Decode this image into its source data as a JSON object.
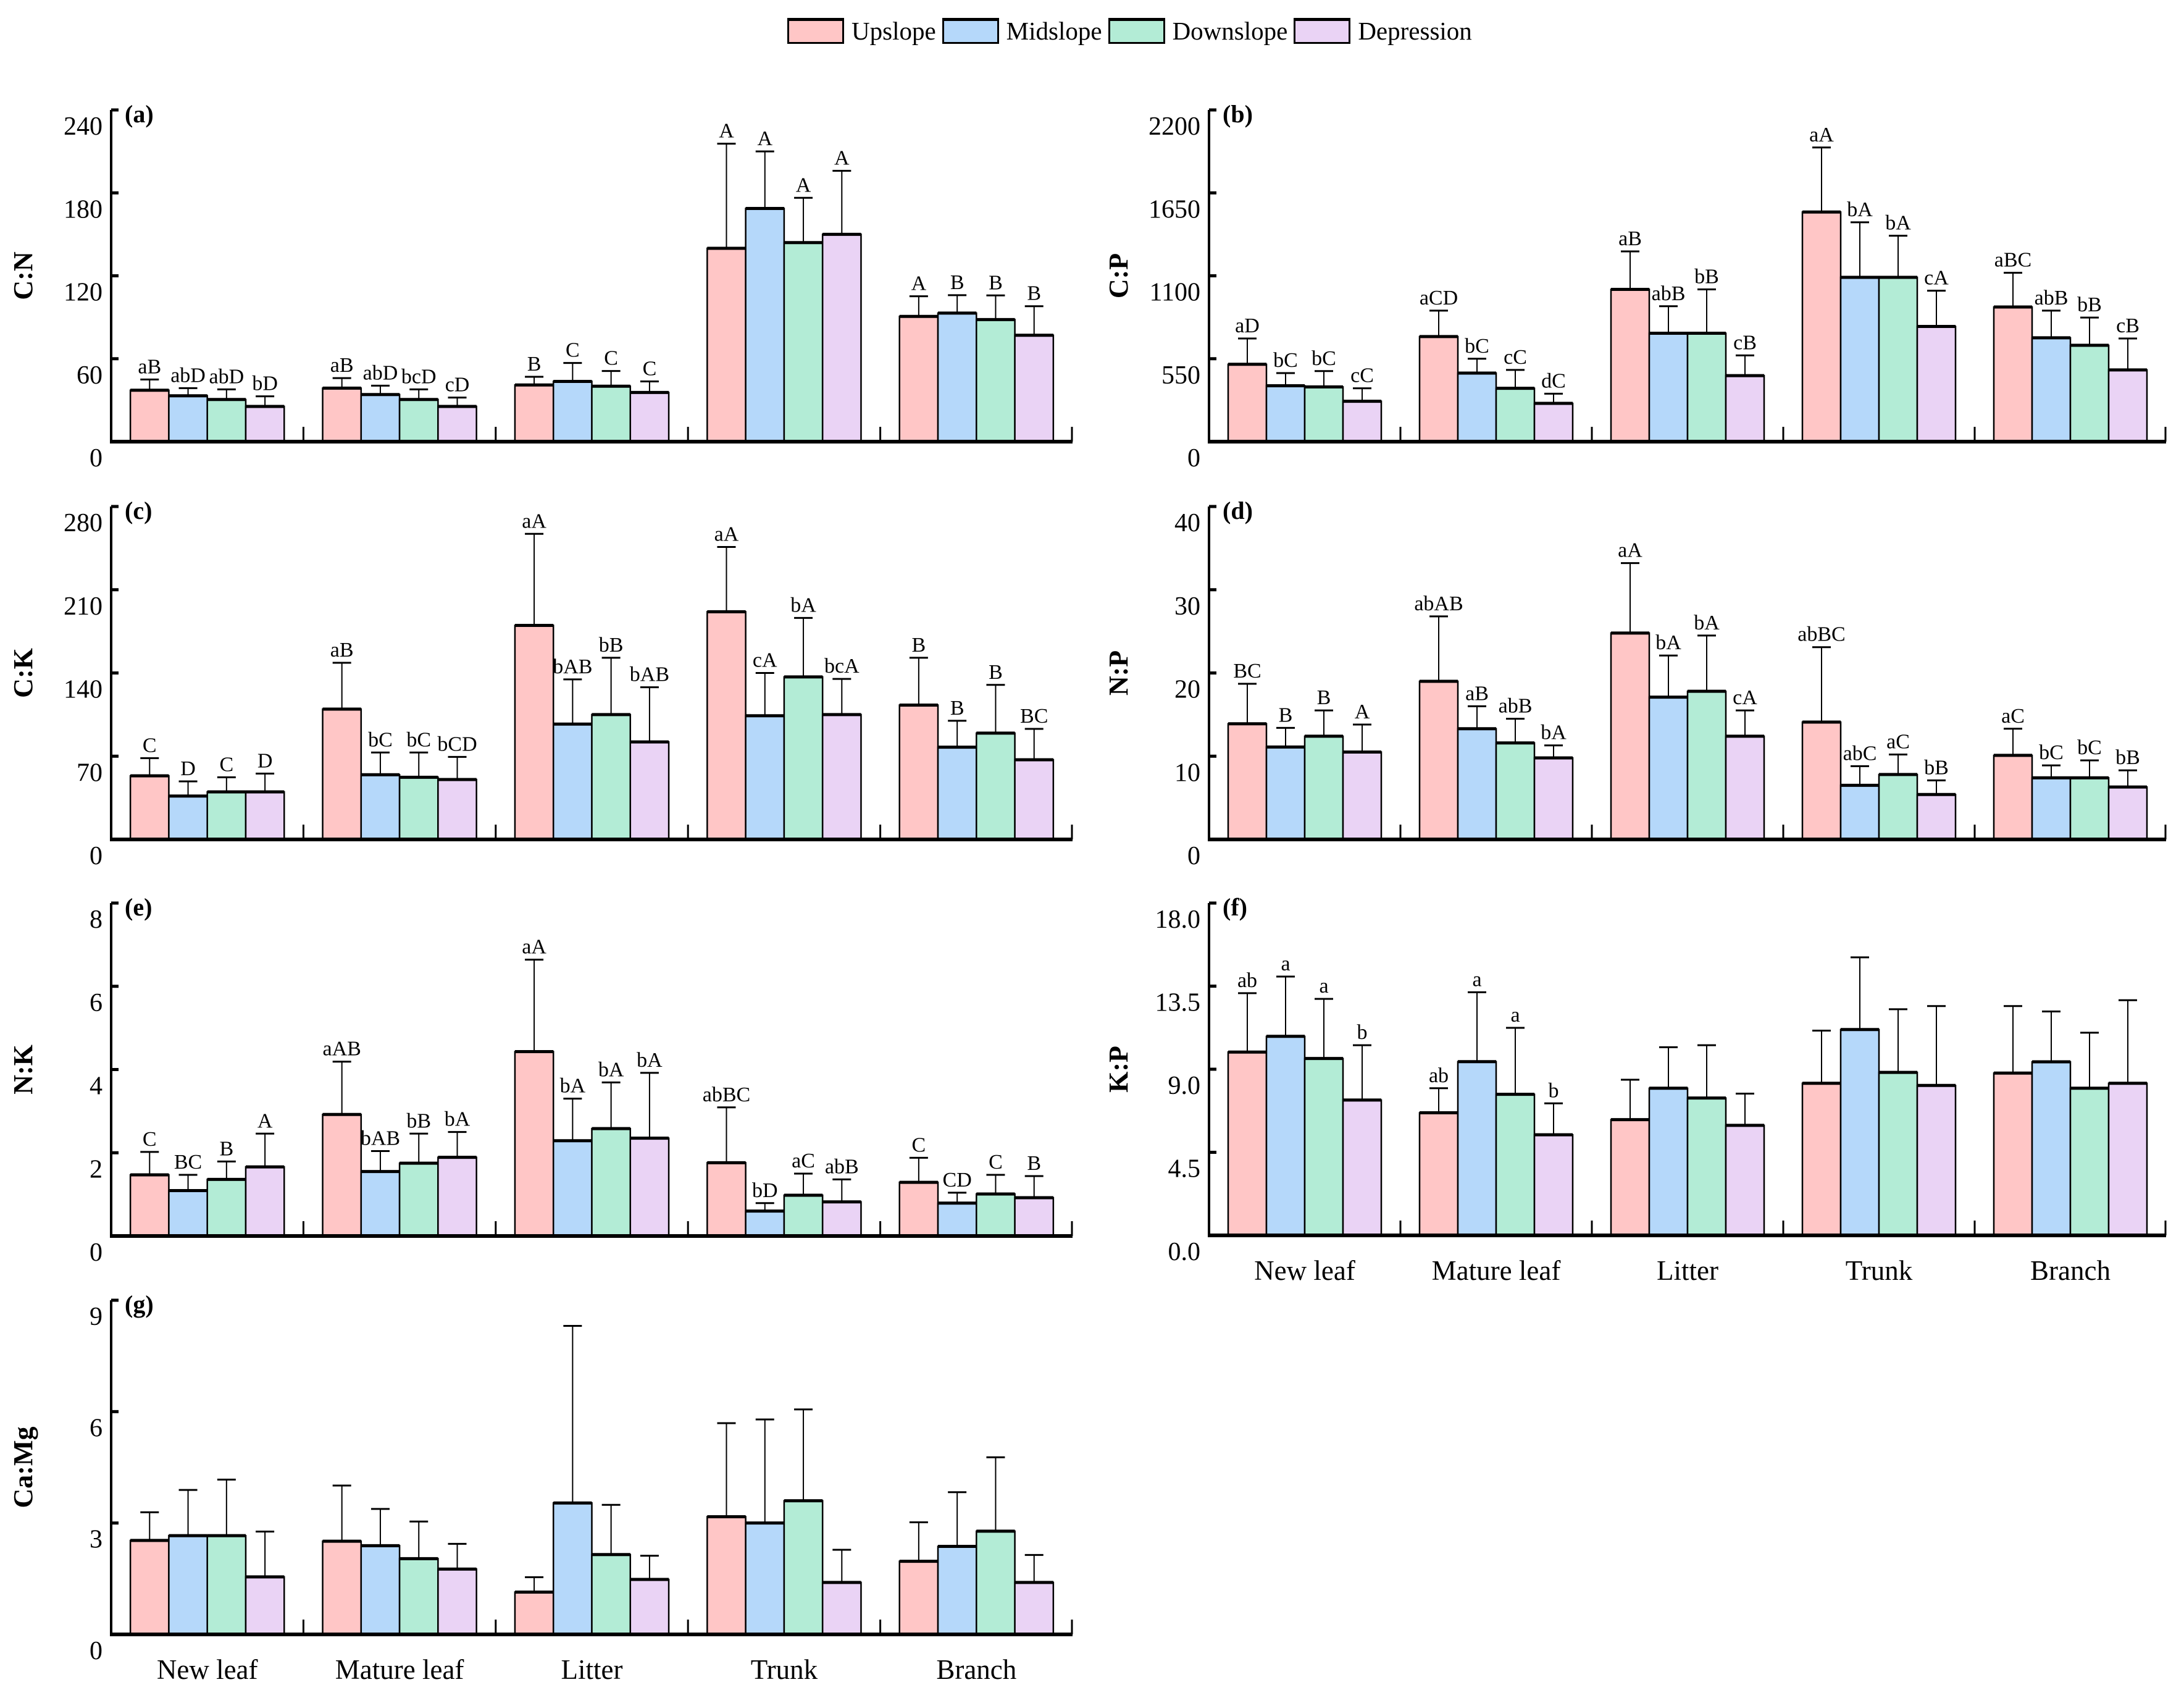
{
  "legend": [
    {
      "name": "Upslope",
      "color": "#FFC6C6"
    },
    {
      "name": "Midslope",
      "color": "#B5D8FA"
    },
    {
      "name": "Downslope",
      "color": "#B3ECD6"
    },
    {
      "name": "Depression",
      "color": "#EAD3F5"
    }
  ],
  "chart_data": [
    {
      "type": "bar",
      "panel": "(a)",
      "ylabel": "C:N",
      "categories": [
        "New leaf",
        "Mature leaf",
        "Litter",
        "Trunk",
        "Branch"
      ],
      "ylim": [
        0,
        240
      ],
      "ticks": [
        "0",
        "60",
        "120",
        "180",
        "240"
      ],
      "show_xlabels": false,
      "series": [
        {
          "name": "Upslope",
          "values": [
            37.2,
            38.7,
            41.0,
            139.9,
            90.6
          ],
          "error": [
            7.8,
            7.3,
            5.9,
            75.7,
            14.6
          ],
          "letters": [
            "aB",
            "aB",
            "B",
            "A",
            "A"
          ]
        },
        {
          "name": "Midslope",
          "values": [
            33.2,
            34.1,
            43.6,
            168.7,
            93.0
          ],
          "error": [
            5.5,
            6.4,
            13.3,
            41.3,
            13.0
          ],
          "letters": [
            "abD",
            "abD",
            "C",
            "A",
            "B"
          ]
        },
        {
          "name": "Downslope",
          "values": [
            30.5,
            30.5,
            40.1,
            144.0,
            88.3
          ],
          "error": [
            7.3,
            7.3,
            11.0,
            32.4,
            17.5
          ],
          "letters": [
            "abD",
            "bcD",
            "C",
            "A",
            "B"
          ]
        },
        {
          "name": "Depression",
          "values": [
            25.5,
            25.5,
            35.6,
            150.0,
            77.0
          ],
          "error": [
            7.3,
            6.4,
            8.0,
            46.0,
            21.0
          ],
          "letters": [
            "bD",
            "cD",
            "C",
            "A",
            "B"
          ]
        }
      ]
    },
    {
      "type": "bar",
      "panel": "(b)",
      "ylabel": "C:P",
      "categories": [
        "New leaf",
        "Mature leaf",
        "Litter",
        "Trunk",
        "Branch"
      ],
      "ylim": [
        0,
        2200
      ],
      "ticks": [
        "0",
        "550",
        "1100",
        "1650",
        "2200"
      ],
      "show_xlabels": false,
      "series": [
        {
          "name": "Upslope",
          "values": [
            513,
            697,
            1010,
            1523,
            893
          ],
          "error": [
            171,
            172,
            252,
            428,
            227
          ],
          "letters": [
            "aD",
            "aCD",
            "aB",
            "aA",
            "aBC"
          ]
        },
        {
          "name": "Midslope",
          "values": [
            371,
            455,
            719,
            1090,
            689
          ],
          "error": [
            84,
            95,
            179,
            365,
            180
          ],
          "letters": [
            "bC",
            "bC",
            "abB",
            "bA",
            "abB"
          ]
        },
        {
          "name": "Downslope",
          "values": [
            363,
            354,
            719,
            1090,
            639
          ],
          "error": [
            105,
            122,
            291,
            276,
            184
          ],
          "letters": [
            "bC",
            "cC",
            "bB",
            "bA",
            "bB"
          ]
        },
        {
          "name": "Depression",
          "values": [
            268,
            254,
            438,
            764,
            476
          ],
          "error": [
            86,
            64,
            134,
            237,
            208
          ],
          "letters": [
            "cC",
            "dC",
            "cB",
            "cA",
            "cB"
          ]
        }
      ]
    },
    {
      "type": "bar",
      "panel": "(c)",
      "ylabel": "C:K",
      "categories": [
        "New leaf",
        "Mature leaf",
        "Litter",
        "Trunk",
        "Branch"
      ],
      "ylim": [
        0,
        280
      ],
      "ticks": [
        "0",
        "70",
        "140",
        "210",
        "280"
      ],
      "show_xlabels": false,
      "series": [
        {
          "name": "Upslope",
          "values": [
            53.5,
            109.6,
            180.0,
            191.5,
            113.0
          ],
          "error": [
            14.9,
            39.0,
            77.0,
            54.5,
            39.8
          ],
          "letters": [
            "C",
            "aB",
            "aA",
            "aA",
            "B"
          ]
        },
        {
          "name": "Midslope",
          "values": [
            36.5,
            54.4,
            97.0,
            104.0,
            77.6
          ],
          "error": [
            12.3,
            18.7,
            37.6,
            36.0,
            22.2
          ],
          "letters": [
            "D",
            "bC",
            "bAB",
            "cA",
            "B"
          ]
        },
        {
          "name": "Downslope",
          "values": [
            40.0,
            52.3,
            105.0,
            136.7,
            89.4
          ],
          "error": [
            12.3,
            20.8,
            47.8,
            49.6,
            40.6
          ],
          "letters": [
            "C",
            "bC",
            "bB",
            "bA",
            "B"
          ]
        },
        {
          "name": "Depression",
          "values": [
            40.0,
            50.4,
            82.0,
            105.0,
            67.0
          ],
          "error": [
            15.4,
            19.0,
            46.0,
            30.0,
            26.0
          ],
          "letters": [
            "D",
            "bCD",
            "bAB",
            "bcA",
            "BC"
          ]
        }
      ]
    },
    {
      "type": "bar",
      "panel": "(d)",
      "ylabel": "N:P",
      "categories": [
        "New leaf",
        "Mature leaf",
        "Litter",
        "Trunk",
        "Branch"
      ],
      "ylim": [
        0,
        40
      ],
      "ticks": [
        "0",
        "10",
        "20",
        "30",
        "40"
      ],
      "show_xlabels": false,
      "series": [
        {
          "name": "Upslope",
          "values": [
            13.9,
            19.0,
            24.8,
            14.1,
            10.1
          ],
          "error": [
            4.8,
            7.8,
            8.4,
            9.0,
            3.2
          ],
          "letters": [
            "BC",
            "abAB",
            "aA",
            "abBC",
            "aC"
          ]
        },
        {
          "name": "Midslope",
          "values": [
            11.1,
            13.3,
            17.1,
            6.5,
            7.4
          ],
          "error": [
            2.3,
            2.7,
            5.0,
            2.3,
            1.5
          ],
          "letters": [
            "B",
            "aB",
            "bA",
            "abC",
            "bC"
          ]
        },
        {
          "name": "Downslope",
          "values": [
            12.4,
            11.6,
            17.8,
            7.8,
            7.4
          ],
          "error": [
            3.1,
            2.9,
            6.7,
            2.4,
            2.1
          ],
          "letters": [
            "B",
            "abB",
            "bA",
            "aC",
            "bC"
          ]
        },
        {
          "name": "Depression",
          "values": [
            10.5,
            9.8,
            12.4,
            5.4,
            6.3
          ],
          "error": [
            3.3,
            1.5,
            3.1,
            1.7,
            2.0
          ],
          "letters": [
            "A",
            "bA",
            "cA",
            "bB",
            "bB"
          ]
        }
      ]
    },
    {
      "type": "bar",
      "panel": "(e)",
      "ylabel": "N:K",
      "categories": [
        "New leaf",
        "Mature leaf",
        "Litter",
        "Trunk",
        "Branch"
      ],
      "ylim": [
        0,
        8
      ],
      "ticks": [
        "0",
        "2",
        "4",
        "6",
        "8"
      ],
      "show_xlabels": false,
      "series": [
        {
          "name": "Upslope",
          "values": [
            1.47,
            2.92,
            4.43,
            1.76,
            1.29
          ],
          "error": [
            0.55,
            1.27,
            2.21,
            1.33,
            0.59
          ],
          "letters": [
            "C",
            "aAB",
            "aA",
            "abBC",
            "C"
          ]
        },
        {
          "name": "Midslope",
          "values": [
            1.09,
            1.55,
            2.29,
            0.6,
            0.79
          ],
          "error": [
            0.38,
            0.49,
            1.01,
            0.19,
            0.25
          ],
          "letters": [
            "BC",
            "bAB",
            "bA",
            "bD",
            "CD"
          ]
        },
        {
          "name": "Downslope",
          "values": [
            1.36,
            1.75,
            2.58,
            0.98,
            1.01
          ],
          "error": [
            0.43,
            0.71,
            1.11,
            0.52,
            0.46
          ],
          "letters": [
            "B",
            "bB",
            "bA",
            "aC",
            "C"
          ]
        },
        {
          "name": "Depression",
          "values": [
            1.66,
            1.89,
            2.35,
            0.82,
            0.92
          ],
          "error": [
            0.8,
            0.61,
            1.57,
            0.54,
            0.52
          ],
          "letters": [
            "A",
            "bA",
            "bA",
            "abB",
            "B"
          ]
        }
      ]
    },
    {
      "type": "bar",
      "panel": "(f)",
      "ylabel": "K:P",
      "categories": [
        "New leaf",
        "Mature leaf",
        "Litter",
        "Trunk",
        "Branch"
      ],
      "ylim": [
        0,
        18
      ],
      "ticks": [
        "0.0",
        "4.5",
        "9.0",
        "13.5",
        "18.0"
      ],
      "show_xlabels": true,
      "series": [
        {
          "name": "Upslope",
          "values": [
            9.93,
            6.64,
            6.27,
            8.24,
            8.79
          ],
          "error": [
            3.19,
            1.33,
            2.16,
            2.85,
            3.63
          ],
          "letters": [
            "ab",
            "ab",
            "",
            "",
            ""
          ]
        },
        {
          "name": "Midslope",
          "values": [
            10.78,
            9.41,
            7.97,
            11.15,
            9.4
          ],
          "error": [
            3.24,
            3.76,
            2.22,
            3.91,
            2.73
          ],
          "letters": [
            "a",
            "a",
            "",
            "",
            ""
          ]
        },
        {
          "name": "Downslope",
          "values": [
            9.58,
            7.64,
            7.44,
            8.83,
            7.97
          ],
          "error": [
            3.23,
            3.6,
            2.86,
            3.42,
            3.01
          ],
          "letters": [
            "a",
            "a",
            "",
            "",
            ""
          ]
        },
        {
          "name": "Depression",
          "values": [
            7.33,
            5.45,
            5.96,
            8.12,
            8.24
          ],
          "error": [
            2.97,
            1.7,
            1.72,
            4.3,
            4.5
          ],
          "letters": [
            "b",
            "b",
            "",
            "",
            ""
          ]
        }
      ]
    },
    {
      "type": "bar",
      "panel": "(g)",
      "ylabel": "Ca:Mg",
      "categories": [
        "New leaf",
        "Mature leaf",
        "Litter",
        "Trunk",
        "Branch"
      ],
      "ylim": [
        0,
        9
      ],
      "ticks": [
        "0",
        "3",
        "6",
        "9"
      ],
      "show_xlabels": true,
      "series": [
        {
          "name": "Upslope",
          "values": [
            2.53,
            2.51,
            1.14,
            3.17,
            1.97
          ],
          "error": [
            0.76,
            1.5,
            0.4,
            2.52,
            1.05
          ],
          "letters": [
            "",
            "",
            "",
            "",
            ""
          ]
        },
        {
          "name": "Midslope",
          "values": [
            2.66,
            2.39,
            3.54,
            3.0,
            2.37
          ],
          "error": [
            1.23,
            0.99,
            4.77,
            2.79,
            1.46
          ],
          "letters": [
            "",
            "",
            "",
            "",
            ""
          ]
        },
        {
          "name": "Downslope",
          "values": [
            2.66,
            2.04,
            2.15,
            3.6,
            2.78
          ],
          "error": [
            1.51,
            1.0,
            1.34,
            2.46,
            1.99
          ],
          "letters": [
            "",
            "",
            "",
            "",
            ""
          ]
        },
        {
          "name": "Depression",
          "values": [
            1.55,
            1.76,
            1.48,
            1.4,
            1.4
          ],
          "error": [
            1.22,
            0.68,
            0.64,
            0.88,
            0.74
          ],
          "letters": [
            "",
            "",
            "",
            "",
            ""
          ]
        }
      ]
    }
  ]
}
